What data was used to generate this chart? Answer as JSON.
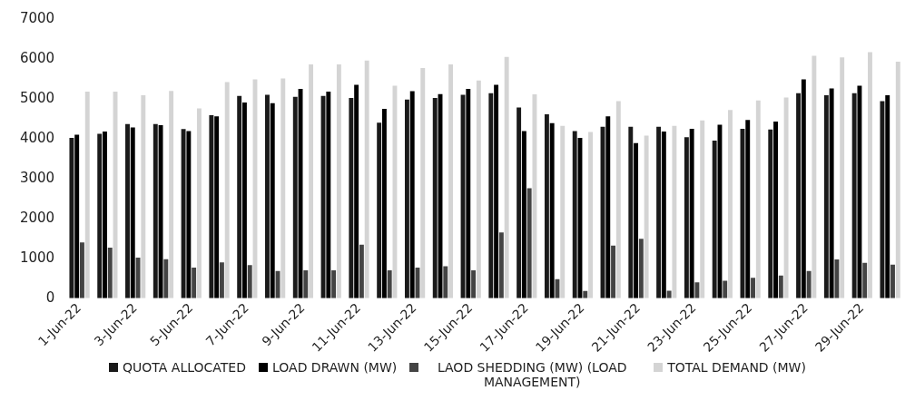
{
  "chart_data": {
    "type": "bar",
    "categories": [
      "1-Jun-22",
      null,
      "3-Jun-22",
      null,
      "5-Jun-22",
      null,
      "7-Jun-22",
      null,
      "9-Jun-22",
      null,
      "11-Jun-22",
      null,
      "13-Jun-22",
      null,
      "15-Jun-22",
      null,
      "17-Jun-22",
      null,
      "19-Jun-22",
      null,
      "21-Jun-22",
      null,
      "23-Jun-22",
      null,
      "25-Jun-22",
      null,
      "27-Jun-22",
      null,
      "29-Jun-22",
      null
    ],
    "series": [
      {
        "name": "QUOTA ALLOCATED",
        "color": "#1a1a1a",
        "values": [
          4020,
          4120,
          4370,
          4370,
          4240,
          4590,
          5070,
          5100,
          5050,
          5070,
          5020,
          4400,
          4980,
          5020,
          5100,
          5140,
          4780,
          4610,
          4190,
          4300,
          4300,
          4300,
          4040,
          3950,
          4250,
          4230,
          5140,
          5090,
          5140,
          4940
        ]
      },
      {
        "name": "LOAD DRAWN (MW)",
        "color": "#000000",
        "values": [
          4100,
          4180,
          4280,
          4340,
          4190,
          4560,
          4910,
          4890,
          5250,
          5180,
          5350,
          4750,
          5190,
          5120,
          5250,
          5350,
          4190,
          4390,
          4020,
          4560,
          3890,
          4180,
          4250,
          4350,
          4470,
          4430,
          5490,
          5260,
          5330,
          5090
        ]
      },
      {
        "name": "LAOD SHEDDING (MW) (LOAD MANAGEMENT)",
        "color": "#444444",
        "values": [
          1400,
          1270,
          1020,
          980,
          770,
          900,
          830,
          680,
          700,
          700,
          1340,
          700,
          770,
          800,
          700,
          1650,
          2760,
          480,
          180,
          1320,
          1490,
          190,
          400,
          440,
          510,
          570,
          680,
          970,
          890,
          840
        ]
      },
      {
        "name": "TOTAL DEMAND (MW)",
        "color": "#d4d4d4",
        "values": [
          5180,
          5180,
          5090,
          5200,
          4760,
          5420,
          5490,
          5510,
          5860,
          5860,
          5960,
          5330,
          5770,
          5860,
          5460,
          6050,
          5110,
          4320,
          4170,
          4940,
          4080,
          4320,
          4460,
          4720,
          4960,
          5030,
          6080,
          6040,
          6170,
          5930
        ]
      }
    ],
    "ylim": [
      0,
      7000
    ],
    "yticks": [
      0,
      1000,
      2000,
      3000,
      4000,
      5000,
      6000,
      7000
    ],
    "grid": false,
    "legend": "bottom"
  }
}
